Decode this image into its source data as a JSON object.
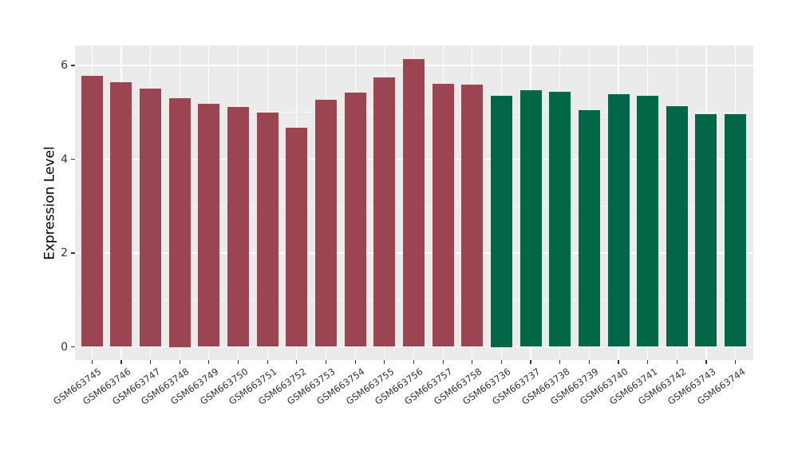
{
  "chart_data": {
    "type": "bar",
    "ylabel": "Expression Level",
    "yticks": [
      0,
      2,
      4,
      6
    ],
    "minor_yticks": [
      1,
      3,
      5
    ],
    "ylim_display": [
      -0.28,
      6.43
    ],
    "grid": true,
    "panel_background": "#EBEBEB",
    "gridline_color": "#FFFFFF",
    "tick_text_color": "#333333",
    "groups": {
      "group1": "#9B4452",
      "group2": "#016748"
    },
    "bars": [
      {
        "label": "GSM663745",
        "value": 5.78,
        "group": "group1"
      },
      {
        "label": "GSM663746",
        "value": 5.64,
        "group": "group1"
      },
      {
        "label": "GSM663747",
        "value": 5.51,
        "group": "group1"
      },
      {
        "label": "GSM663748",
        "value": 5.3,
        "group": "group1"
      },
      {
        "label": "GSM663749",
        "value": 5.19,
        "group": "group1"
      },
      {
        "label": "GSM663750",
        "value": 5.12,
        "group": "group1"
      },
      {
        "label": "GSM663751",
        "value": 4.99,
        "group": "group1"
      },
      {
        "label": "GSM663752",
        "value": 4.67,
        "group": "group1"
      },
      {
        "label": "GSM663753",
        "value": 5.27,
        "group": "group1"
      },
      {
        "label": "GSM663754",
        "value": 5.42,
        "group": "group1"
      },
      {
        "label": "GSM663755",
        "value": 5.74,
        "group": "group1"
      },
      {
        "label": "GSM663756",
        "value": 6.13,
        "group": "group1"
      },
      {
        "label": "GSM663757",
        "value": 5.61,
        "group": "group1"
      },
      {
        "label": "GSM663758",
        "value": 5.59,
        "group": "group1"
      },
      {
        "label": "GSM663736",
        "value": 5.35,
        "group": "group2"
      },
      {
        "label": "GSM663737",
        "value": 5.47,
        "group": "group2"
      },
      {
        "label": "GSM663738",
        "value": 5.43,
        "group": "group2"
      },
      {
        "label": "GSM663739",
        "value": 5.04,
        "group": "group2"
      },
      {
        "label": "GSM663740",
        "value": 5.38,
        "group": "group2"
      },
      {
        "label": "GSM663741",
        "value": 5.36,
        "group": "group2"
      },
      {
        "label": "GSM663742",
        "value": 5.14,
        "group": "group2"
      },
      {
        "label": "GSM663743",
        "value": 4.97,
        "group": "group2"
      },
      {
        "label": "GSM663744",
        "value": 4.97,
        "group": "group2"
      }
    ]
  }
}
